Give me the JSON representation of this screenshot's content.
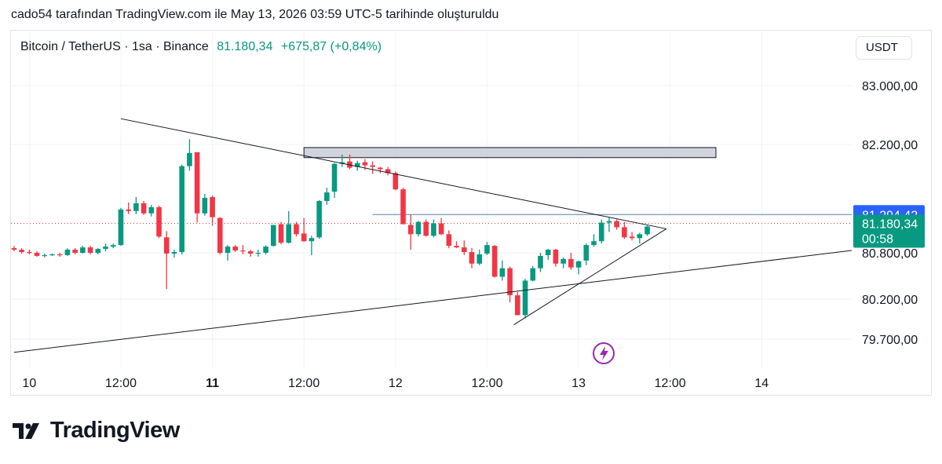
{
  "caption": "cado54 tarafından TradingView.com ile May 13, 2026 03:59 UTC-5 tarihinde oluşturuldu",
  "legend": {
    "symbol": "Bitcoin / TetherUS · 1sa · Binance",
    "price": "81.180,34",
    "change": "+675,87 (+0,84%)"
  },
  "currency": "USDT",
  "brand": "TradingView",
  "colors": {
    "up": "#089981",
    "down": "#f23645",
    "blue": "#2962ff",
    "grid": "#f0f3fa"
  },
  "chart_data": {
    "type": "candlestick",
    "y_ticks": [
      {
        "value": 83000,
        "label": "83.000,00"
      },
      {
        "value": 82200,
        "label": "82.200,00"
      },
      {
        "value": 80800,
        "label": "80.800,00"
      },
      {
        "value": 80200,
        "label": "80.200,00"
      },
      {
        "value": 79700,
        "label": "79.700,00"
      }
    ],
    "x_ticks": [
      {
        "t": 0,
        "label": "10",
        "bold": false
      },
      {
        "t": 12,
        "label": "12:00",
        "bold": false
      },
      {
        "t": 24,
        "label": "11",
        "bold": true
      },
      {
        "t": 36,
        "label": "12:00",
        "bold": false
      },
      {
        "t": 48,
        "label": "12",
        "bold": false
      },
      {
        "t": 60,
        "label": "12:00",
        "bold": false
      },
      {
        "t": 72,
        "label": "13",
        "bold": false
      },
      {
        "t": 84,
        "label": "12:00",
        "bold": false
      },
      {
        "t": 96,
        "label": "14",
        "bold": false
      }
    ],
    "y_range": [
      79450,
      83250
    ],
    "x_range": [
      -2.4,
      107.8
    ],
    "candles": [
      [
        -2,
        80860,
        80890,
        80820,
        80840
      ],
      [
        -1,
        80840,
        80860,
        80790,
        80810
      ],
      [
        0,
        80810,
        80840,
        80780,
        80800
      ],
      [
        1,
        80800,
        80820,
        80750,
        80760
      ],
      [
        2,
        80760,
        80790,
        80740,
        80770
      ],
      [
        3,
        80770,
        80790,
        80760,
        80780
      ],
      [
        4,
        80780,
        80800,
        80750,
        80770
      ],
      [
        5,
        80770,
        80860,
        80760,
        80840
      ],
      [
        6,
        80840,
        80860,
        80780,
        80800
      ],
      [
        7,
        80800,
        80890,
        80790,
        80870
      ],
      [
        8,
        80870,
        80890,
        80780,
        80800
      ],
      [
        9,
        80800,
        80860,
        80780,
        80850
      ],
      [
        10,
        80850,
        80920,
        80820,
        80880
      ],
      [
        11,
        80880,
        80920,
        80860,
        80900
      ],
      [
        12,
        80900,
        81380,
        80890,
        81360
      ],
      [
        13,
        81360,
        81450,
        81300,
        81340
      ],
      [
        14,
        81340,
        81520,
        81300,
        81440
      ],
      [
        15,
        81440,
        81470,
        81290,
        81310
      ],
      [
        16,
        81310,
        81420,
        81270,
        81390
      ],
      [
        17,
        81390,
        81410,
        80990,
        81010
      ],
      [
        18,
        81000,
        81080,
        80330,
        80790
      ],
      [
        19,
        80790,
        80840,
        80740,
        80810
      ],
      [
        20,
        80810,
        81940,
        80780,
        81920
      ],
      [
        21,
        81920,
        82270,
        81860,
        82090
      ],
      [
        22,
        82100,
        82080,
        81190,
        81310
      ],
      [
        23,
        81310,
        81560,
        81280,
        81510
      ],
      [
        24,
        81520,
        81540,
        81150,
        81260
      ],
      [
        25,
        81250,
        81260,
        80780,
        80800
      ],
      [
        26,
        80800,
        80900,
        80700,
        80880
      ],
      [
        27,
        80880,
        80900,
        80810,
        80830
      ],
      [
        28,
        80830,
        80900,
        80780,
        80820
      ],
      [
        29,
        80820,
        80840,
        80750,
        80790
      ],
      [
        30,
        80790,
        80840,
        80750,
        80800
      ],
      [
        31,
        80800,
        80900,
        80780,
        80880
      ],
      [
        32,
        80890,
        81160,
        80880,
        81160
      ],
      [
        33,
        81170,
        81200,
        80910,
        80930
      ],
      [
        34,
        80930,
        81340,
        80920,
        81170
      ],
      [
        35,
        81170,
        81200,
        81010,
        81040
      ],
      [
        36,
        81050,
        81250,
        80940,
        80950
      ],
      [
        37,
        80950,
        81020,
        80770,
        80990
      ],
      [
        38,
        81000,
        81480,
        80980,
        81470
      ],
      [
        39,
        81470,
        81640,
        81420,
        81580
      ],
      [
        40,
        81590,
        81960,
        81510,
        81950
      ],
      [
        41,
        81950,
        82070,
        81910,
        81970
      ],
      [
        42,
        81980,
        82070,
        81880,
        81900
      ],
      [
        43,
        81910,
        81990,
        81860,
        81960
      ],
      [
        44,
        81970,
        82010,
        81870,
        81930
      ],
      [
        45,
        81930,
        81980,
        81820,
        81910
      ],
      [
        46,
        81900,
        81910,
        81830,
        81880
      ],
      [
        47,
        81880,
        81910,
        81800,
        81830
      ],
      [
        48,
        81830,
        81850,
        81610,
        81620
      ],
      [
        49,
        81620,
        81640,
        81170,
        81170
      ],
      [
        50,
        81160,
        81290,
        80840,
        81040
      ],
      [
        51,
        81040,
        81210,
        81010,
        81200
      ],
      [
        52,
        81200,
        81230,
        81010,
        81020
      ],
      [
        53,
        81020,
        81230,
        81000,
        81180
      ],
      [
        54,
        81180,
        81250,
        81030,
        81040
      ],
      [
        55,
        81040,
        81090,
        80860,
        80890
      ],
      [
        56,
        80890,
        80950,
        80860,
        80870
      ],
      [
        57,
        80870,
        80960,
        80770,
        80810
      ],
      [
        58,
        80810,
        80860,
        80600,
        80660
      ],
      [
        59,
        80660,
        80840,
        80640,
        80780
      ],
      [
        60,
        80790,
        80940,
        80770,
        80900
      ],
      [
        61,
        80890,
        80900,
        80480,
        80490
      ],
      [
        62,
        80490,
        80700,
        80440,
        80600
      ],
      [
        63,
        80600,
        80620,
        80160,
        80250
      ],
      [
        64,
        80250,
        80290,
        80000,
        80000
      ],
      [
        65,
        80000,
        80460,
        79960,
        80440
      ],
      [
        66,
        80440,
        80630,
        80430,
        80600
      ],
      [
        67,
        80600,
        80800,
        80550,
        80760
      ],
      [
        68,
        80770,
        80850,
        80710,
        80840
      ],
      [
        69,
        80840,
        80850,
        80620,
        80660
      ],
      [
        70,
        80660,
        80740,
        80600,
        80720
      ],
      [
        71,
        80720,
        80800,
        80580,
        80610
      ],
      [
        72,
        80610,
        80700,
        80520,
        80690
      ],
      [
        73,
        80700,
        80920,
        80640,
        80900
      ],
      [
        74,
        80900,
        81040,
        80880,
        80950
      ],
      [
        75,
        80950,
        81230,
        80920,
        81190
      ],
      [
        76,
        81190,
        81260,
        81070,
        81210
      ],
      [
        77,
        81210,
        81230,
        81100,
        81130
      ],
      [
        78,
        81130,
        81200,
        80980,
        81000
      ],
      [
        79,
        81010,
        81070,
        80960,
        80990
      ],
      [
        80,
        80990,
        81060,
        80920,
        81040
      ],
      [
        81,
        81040,
        81150,
        81020,
        81140
      ]
    ],
    "drawings": {
      "trendlines": [
        {
          "from": [
            12,
            82550
          ],
          "to": [
            83.5,
            81110
          ]
        },
        {
          "from": [
            -2,
            79550
          ],
          "to": [
            107.8,
            80830
          ]
        },
        {
          "from": [
            63.5,
            79880
          ],
          "to": [
            83.5,
            81110
          ]
        }
      ],
      "rectangle": {
        "t0": 36,
        "t1": 90,
        "p_top": 82160,
        "p_bottom": 82030
      },
      "horizontal_line": {
        "t0": 45,
        "t1": 108,
        "price": 81294.42
      },
      "current_price_line": 81180.34
    },
    "price_labels": {
      "level": {
        "value": 81294.42,
        "label": "81.294,42"
      },
      "last": {
        "value": 81180.34,
        "label": "81.180,34",
        "countdown": "00:58"
      }
    }
  }
}
